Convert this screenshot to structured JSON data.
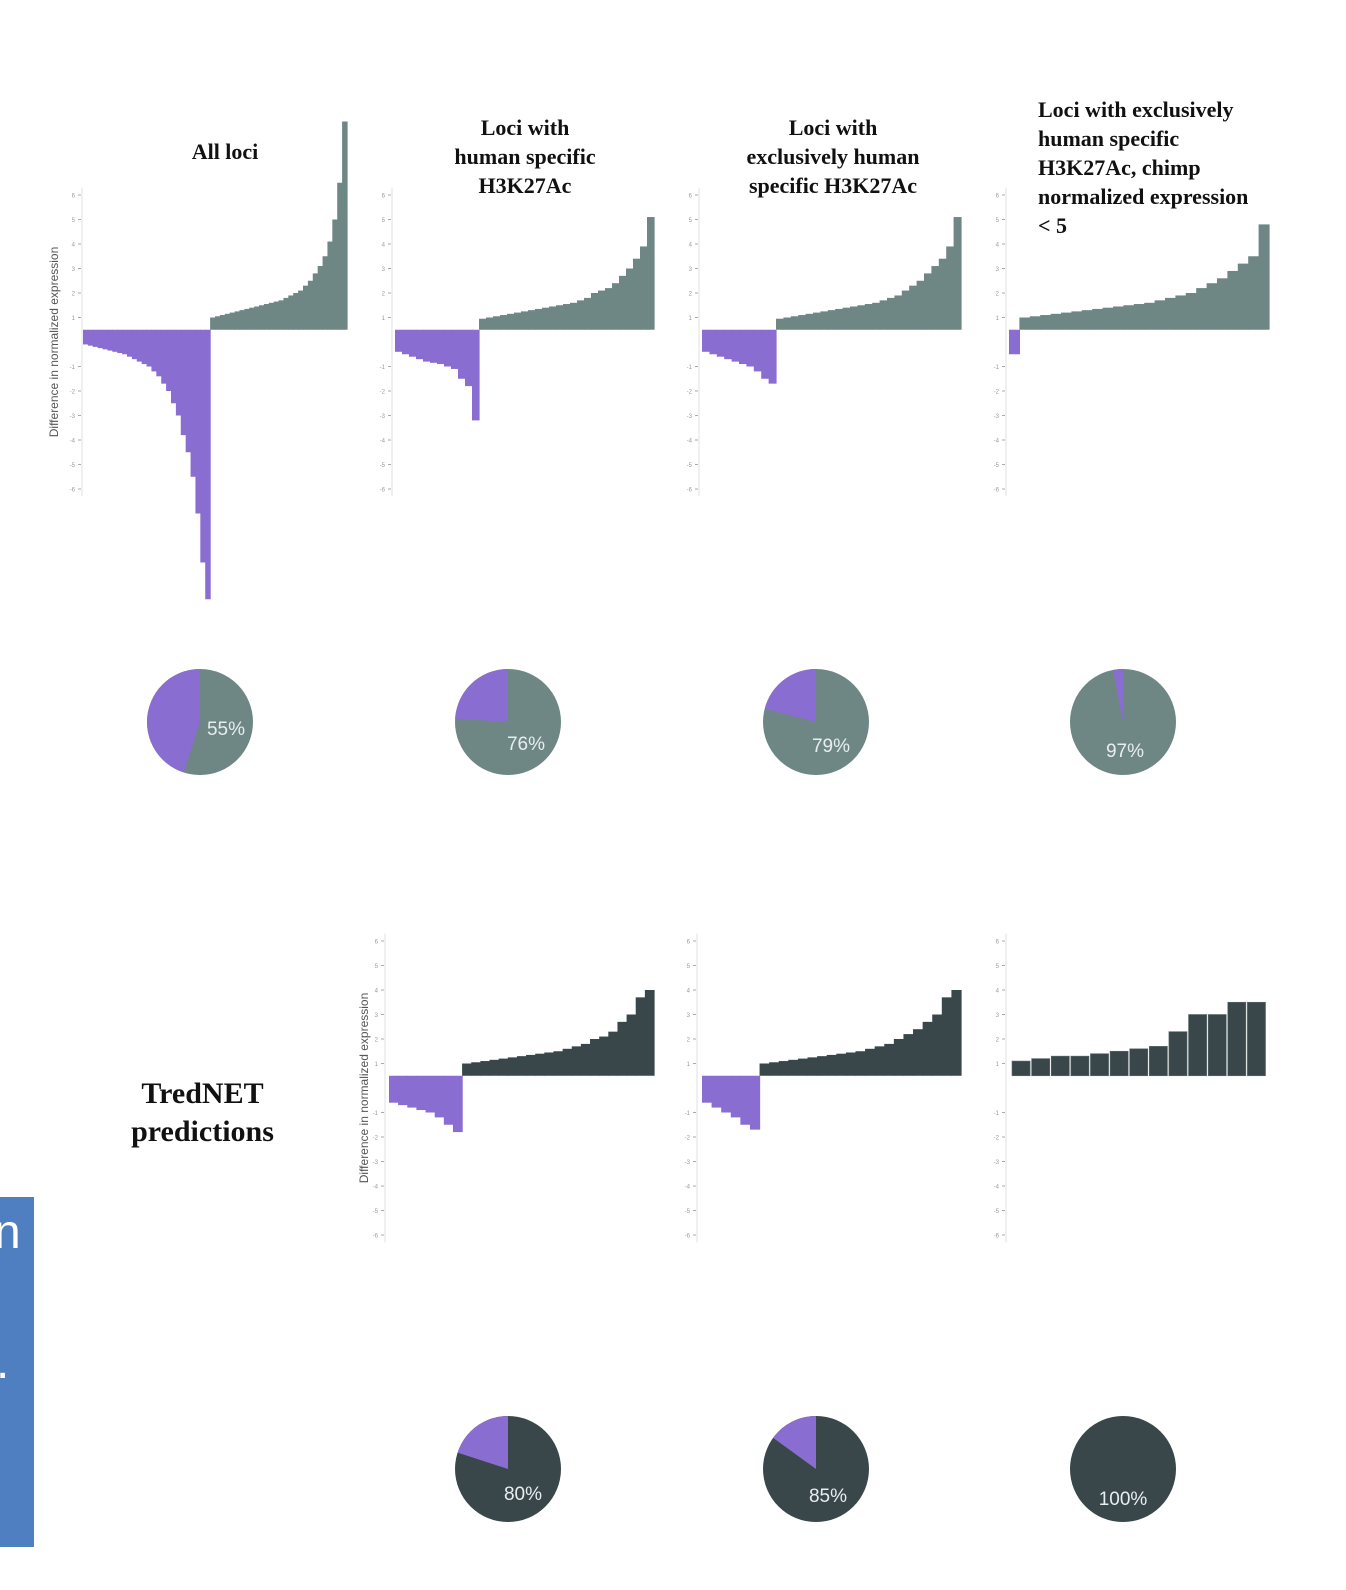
{
  "colors": {
    "negative": "#8a6dd0",
    "positive_top": "#6e8785",
    "positive_bottom": "#39474a",
    "axis": "#aaaaaa"
  },
  "column_titles": [
    [
      "All loci"
    ],
    [
      "Loci with",
      "human specific",
      "H3K27Ac"
    ],
    [
      "Loci with",
      "exclusively human",
      "specific H3K27Ac"
    ],
    [
      "Loci with exclusively",
      "human specific",
      "H3K27Ac, chimp",
      "normalized expression",
      "< 5"
    ]
  ],
  "row_label": [
    "TredNET",
    "predictions"
  ],
  "axis_label": "Difference in normalized expression",
  "side_panel_glyphs": [
    "n",
    "."
  ],
  "chart_data": [
    {
      "type": "area",
      "row": "top",
      "column": 0,
      "title": "All loci",
      "ylabel": "Difference in normalized expression",
      "yticks": [
        6,
        5,
        4,
        3,
        2,
        1,
        -1,
        -2,
        -3,
        -4,
        -5,
        -6
      ],
      "ylim": [
        -11,
        9
      ],
      "negative_values": [
        -0.1,
        -0.15,
        -0.2,
        -0.25,
        -0.3,
        -0.35,
        -0.4,
        -0.45,
        -0.5,
        -0.6,
        -0.7,
        -0.8,
        -0.9,
        -1.0,
        -1.2,
        -1.4,
        -1.7,
        -2.0,
        -2.5,
        -3.0,
        -3.8,
        -4.5,
        -5.5,
        -7,
        -9,
        -10.5
      ],
      "positive_values": [
        0.5,
        0.55,
        0.6,
        0.65,
        0.7,
        0.75,
        0.8,
        0.85,
        0.9,
        0.95,
        1.0,
        1.05,
        1.1,
        1.15,
        1.2,
        1.3,
        1.4,
        1.5,
        1.6,
        1.8,
        2.0,
        2.3,
        2.6,
        3.0,
        3.6,
        4.5,
        6.0,
        8.5
      ]
    },
    {
      "type": "pie",
      "row": "top",
      "column": 0,
      "label": "55%",
      "values": [
        55,
        45
      ]
    },
    {
      "type": "area",
      "row": "top",
      "column": 1,
      "title": "Loci with human specific H3K27Ac",
      "yticks": [
        6,
        5,
        4,
        3,
        2,
        1,
        -1,
        -2,
        -3,
        -4,
        -5,
        -6
      ],
      "ylim": [
        -11,
        9
      ],
      "negative_values": [
        -0.4,
        -0.5,
        -0.6,
        -0.7,
        -0.8,
        -0.85,
        -0.9,
        -1.0,
        -1.1,
        -1.5,
        -1.8,
        -3.2
      ],
      "positive_values": [
        0.45,
        0.5,
        0.55,
        0.6,
        0.65,
        0.7,
        0.75,
        0.8,
        0.85,
        0.9,
        0.95,
        1.0,
        1.05,
        1.1,
        1.2,
        1.3,
        1.5,
        1.6,
        1.7,
        1.9,
        2.2,
        2.5,
        2.9,
        3.4,
        4.6
      ]
    },
    {
      "type": "pie",
      "row": "top",
      "column": 1,
      "label": "76%",
      "values": [
        76,
        24
      ]
    },
    {
      "type": "area",
      "row": "top",
      "column": 2,
      "title": "Loci with exclusively human specific H3K27Ac",
      "yticks": [
        6,
        5,
        4,
        3,
        2,
        1,
        -1,
        -2,
        -3,
        -4,
        -5,
        -6
      ],
      "ylim": [
        -11,
        9
      ],
      "negative_values": [
        -0.4,
        -0.5,
        -0.6,
        -0.7,
        -0.8,
        -0.9,
        -1.0,
        -1.2,
        -1.5,
        -1.7
      ],
      "positive_values": [
        0.45,
        0.5,
        0.55,
        0.6,
        0.65,
        0.7,
        0.75,
        0.8,
        0.85,
        0.9,
        0.95,
        1.0,
        1.05,
        1.1,
        1.2,
        1.3,
        1.4,
        1.6,
        1.8,
        2.0,
        2.3,
        2.6,
        2.9,
        3.4,
        4.6
      ]
    },
    {
      "type": "pie",
      "row": "top",
      "column": 2,
      "label": "79%",
      "values": [
        79,
        21
      ]
    },
    {
      "type": "area",
      "row": "top",
      "column": 3,
      "title": "Loci with exclusively human specific H3K27Ac, chimp normalized expression < 5",
      "yticks": [
        6,
        5,
        4,
        3,
        2,
        1,
        -1,
        -2,
        -3,
        -4,
        -5,
        -6
      ],
      "ylim": [
        -11,
        9
      ],
      "negative_values": [
        -0.5
      ],
      "positive_values": [
        0.5,
        0.55,
        0.6,
        0.65,
        0.7,
        0.75,
        0.8,
        0.85,
        0.9,
        0.95,
        1.0,
        1.05,
        1.1,
        1.2,
        1.3,
        1.4,
        1.5,
        1.7,
        1.9,
        2.1,
        2.4,
        2.7,
        3.0,
        4.3
      ]
    },
    {
      "type": "pie",
      "row": "top",
      "column": 3,
      "label": "97%",
      "values": [
        97,
        3
      ]
    },
    {
      "type": "area",
      "row": "bottom",
      "column": 1,
      "ylabel": "Difference in normalized expression",
      "yticks": [
        6,
        5,
        4,
        3,
        2,
        1,
        -1,
        -2,
        -3,
        -4,
        -5,
        -6
      ],
      "ylim": [
        -6,
        6.5
      ],
      "negative_values": [
        -0.6,
        -0.7,
        -0.8,
        -0.9,
        -1.0,
        -1.2,
        -1.5,
        -1.8
      ],
      "positive_values": [
        0.5,
        0.55,
        0.6,
        0.65,
        0.7,
        0.75,
        0.8,
        0.85,
        0.9,
        0.95,
        1.0,
        1.1,
        1.2,
        1.3,
        1.5,
        1.6,
        1.8,
        2.2,
        2.5,
        3.2,
        3.5
      ]
    },
    {
      "type": "pie",
      "row": "bottom",
      "column": 1,
      "label": "80%",
      "values": [
        80,
        20
      ]
    },
    {
      "type": "area",
      "row": "bottom",
      "column": 2,
      "yticks": [
        6,
        5,
        4,
        3,
        2,
        1,
        -1,
        -2,
        -3,
        -4,
        -5,
        -6
      ],
      "ylim": [
        -6,
        6.5
      ],
      "negative_values": [
        -0.6,
        -0.8,
        -1.0,
        -1.2,
        -1.5,
        -1.7
      ],
      "positive_values": [
        0.5,
        0.55,
        0.6,
        0.65,
        0.7,
        0.75,
        0.8,
        0.85,
        0.9,
        0.95,
        1.0,
        1.1,
        1.2,
        1.3,
        1.5,
        1.7,
        1.9,
        2.2,
        2.5,
        3.2,
        3.5
      ]
    },
    {
      "type": "pie",
      "row": "bottom",
      "column": 2,
      "label": "85%",
      "values": [
        85,
        15
      ]
    },
    {
      "type": "bar",
      "row": "bottom",
      "column": 3,
      "yticks": [
        6,
        5,
        4,
        3,
        2,
        1,
        -1,
        -2,
        -3,
        -4,
        -5,
        -6
      ],
      "ylim": [
        -6,
        6.5
      ],
      "values": [
        0.6,
        0.7,
        0.8,
        0.8,
        0.9,
        1.0,
        1.1,
        1.2,
        1.8,
        2.5,
        2.5,
        3.0,
        3.0
      ]
    },
    {
      "type": "pie",
      "row": "bottom",
      "column": 3,
      "label": "100%",
      "values": [
        100,
        0
      ]
    }
  ]
}
